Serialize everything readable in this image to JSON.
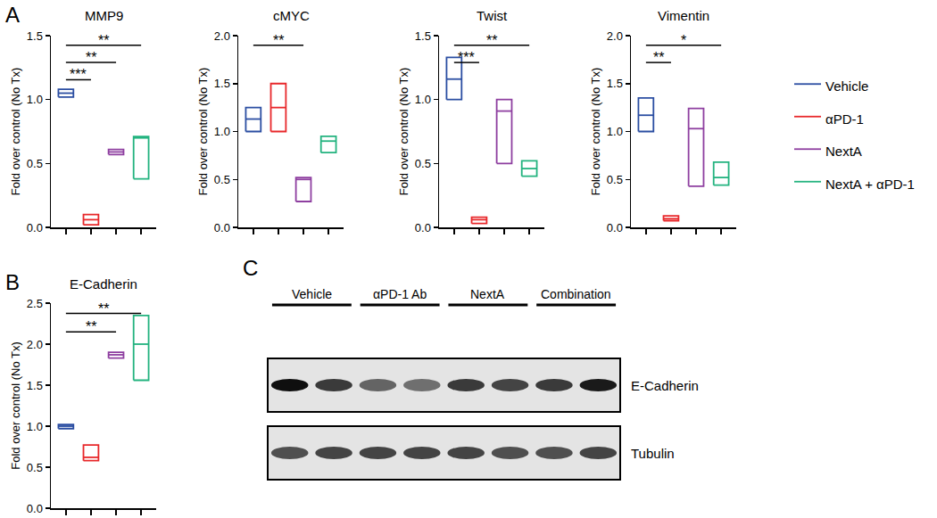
{
  "chart_data": [
    {
      "type": "floating_bar",
      "title": "MMP9",
      "panel": "A",
      "y_label": "Fold over control (No Tx)",
      "tick_labels": "y",
      "legend": "right",
      "ylim": [
        0,
        1.5
      ],
      "yticks": [
        {
          "value": 0,
          "label": "0.0"
        },
        {
          "value": 0.5,
          "label": "0.5"
        },
        {
          "value": 1,
          "label": "1.0"
        },
        {
          "value": 1.5,
          "label": "1.5"
        }
      ],
      "series": [
        {
          "name": "Vehicle",
          "color": "#2b4ea2",
          "low": 1.02,
          "mid": 1.05,
          "high": 1.08
        },
        {
          "name": "αPD-1",
          "color": "#e8282b",
          "low": 0.02,
          "mid": 0.06,
          "high": 0.1
        },
        {
          "name": "NextA",
          "color": "#8e3fa0",
          "low": 0.57,
          "mid": 0.59,
          "high": 0.61
        },
        {
          "name": "NextA + αPD-1",
          "color": "#23b37f",
          "low": 0.38,
          "mid": 0.7,
          "high": 0.71
        }
      ],
      "brackets": [
        {
          "from": "Vehicle",
          "to": "αPD-1",
          "label": "***"
        },
        {
          "from": "Vehicle",
          "to": "NextA",
          "label": "**"
        },
        {
          "from": "Vehicle",
          "to": "NextA + αPD-1",
          "label": "**"
        }
      ]
    },
    {
      "type": "floating_bar",
      "title": "cMYC",
      "y_label": "Fold over control (No Tx)",
      "tick_labels": "y",
      "ylim": [
        0,
        2
      ],
      "yticks": [
        {
          "value": 0,
          "label": "0.0"
        },
        {
          "value": 0.5,
          "label": "0.5"
        },
        {
          "value": 1,
          "label": "1.0"
        },
        {
          "value": 1.5,
          "label": "1.5"
        },
        {
          "value": 2,
          "label": "2.0"
        }
      ],
      "series": [
        {
          "name": "Vehicle",
          "color": "#2b4ea2",
          "low": 1.0,
          "mid": 1.13,
          "high": 1.25
        },
        {
          "name": "αPD-1",
          "color": "#e8282b",
          "low": 1.0,
          "mid": 1.25,
          "high": 1.5
        },
        {
          "name": "NextA",
          "color": "#8e3fa0",
          "low": 0.27,
          "mid": 0.5,
          "high": 0.52
        },
        {
          "name": "NextA + αPD-1",
          "color": "#23b37f",
          "low": 0.78,
          "mid": 0.9,
          "high": 0.95
        }
      ],
      "brackets": [
        {
          "from": "Vehicle",
          "to": "NextA",
          "label": "**"
        }
      ]
    },
    {
      "type": "floating_bar",
      "title": "Twist",
      "y_label": "Fold over control (No Tx)",
      "tick_labels": "y",
      "ylim": [
        0,
        1.5
      ],
      "yticks": [
        {
          "value": 0,
          "label": "0.0"
        },
        {
          "value": 0.5,
          "label": "0.5"
        },
        {
          "value": 1,
          "label": "1.0"
        },
        {
          "value": 1.5,
          "label": "1.5"
        }
      ],
      "series": [
        {
          "name": "Vehicle",
          "color": "#2b4ea2",
          "low": 1.0,
          "mid": 1.16,
          "high": 1.33
        },
        {
          "name": "αPD-1",
          "color": "#e8282b",
          "low": 0.03,
          "mid": 0.06,
          "high": 0.08
        },
        {
          "name": "NextA",
          "color": "#8e3fa0",
          "low": 0.5,
          "mid": 0.91,
          "high": 1.0
        },
        {
          "name": "NextA + αPD-1",
          "color": "#23b37f",
          "low": 0.4,
          "mid": 0.46,
          "high": 0.52
        }
      ],
      "brackets": [
        {
          "from": "Vehicle",
          "to": "αPD-1",
          "label": "***"
        },
        {
          "from": "Vehicle",
          "to": "NextA + αPD-1",
          "label": "**"
        }
      ]
    },
    {
      "type": "floating_bar",
      "title": "Vimentin",
      "y_label": "Fold over control (No Tx)",
      "tick_labels": "y",
      "ylim": [
        0,
        2
      ],
      "yticks": [
        {
          "value": 0,
          "label": "0.0"
        },
        {
          "value": 0.5,
          "label": "0.5"
        },
        {
          "value": 1,
          "label": "1.0"
        },
        {
          "value": 1.5,
          "label": "1.5"
        },
        {
          "value": 2,
          "label": "2.0"
        }
      ],
      "series": [
        {
          "name": "Vehicle",
          "color": "#2b4ea2",
          "low": 1.0,
          "mid": 1.17,
          "high": 1.35
        },
        {
          "name": "αPD-1",
          "color": "#e8282b",
          "low": 0.07,
          "mid": 0.09,
          "high": 0.12
        },
        {
          "name": "NextA",
          "color": "#8e3fa0",
          "low": 0.43,
          "mid": 1.03,
          "high": 1.24
        },
        {
          "name": "NextA + αPD-1",
          "color": "#23b37f",
          "low": 0.44,
          "mid": 0.52,
          "high": 0.68
        }
      ],
      "brackets": [
        {
          "from": "Vehicle",
          "to": "αPD-1",
          "label": "**"
        },
        {
          "from": "Vehicle",
          "to": "NextA + αPD-1",
          "label": "*"
        }
      ]
    },
    {
      "type": "floating_bar",
      "title": "E-Cadherin",
      "panel": "B",
      "y_label": "Fold over control (No Tx)",
      "tick_labels": "y",
      "ylim": [
        0,
        2.5
      ],
      "yticks": [
        {
          "value": 0,
          "label": "0.0"
        },
        {
          "value": 0.5,
          "label": "0.5"
        },
        {
          "value": 1,
          "label": "1.0"
        },
        {
          "value": 1.5,
          "label": "1.5"
        },
        {
          "value": 2,
          "label": "2.0"
        },
        {
          "value": 2.5,
          "label": "2.5"
        }
      ],
      "series": [
        {
          "name": "Vehicle",
          "color": "#2b4ea2",
          "low": 0.97,
          "mid": 1.0,
          "high": 1.02
        },
        {
          "name": "αPD-1",
          "color": "#e8282b",
          "low": 0.58,
          "mid": 0.62,
          "high": 0.77
        },
        {
          "name": "NextA",
          "color": "#8e3fa0",
          "low": 1.83,
          "mid": 1.87,
          "high": 1.9
        },
        {
          "name": "NextA + αPD-1",
          "color": "#23b37f",
          "low": 1.56,
          "mid": 2.0,
          "high": 2.35
        }
      ],
      "brackets": [
        {
          "from": "Vehicle",
          "to": "NextA",
          "label": "**"
        },
        {
          "from": "Vehicle",
          "to": "NextA + αPD-1",
          "label": "**"
        }
      ]
    }
  ],
  "blot": {
    "panel": "C",
    "groups": [
      "Vehicle",
      "αPD-1 Ab",
      "NextA",
      "Combination"
    ],
    "bands": [
      {
        "label": "E-Cadherin",
        "intensity": [
          1.0,
          0.8,
          0.6,
          0.55,
          0.8,
          0.75,
          0.8,
          0.95
        ]
      },
      {
        "label": "Tubulin",
        "intensity": [
          0.7,
          0.75,
          0.75,
          0.75,
          0.75,
          0.7,
          0.7,
          0.75
        ]
      }
    ]
  }
}
